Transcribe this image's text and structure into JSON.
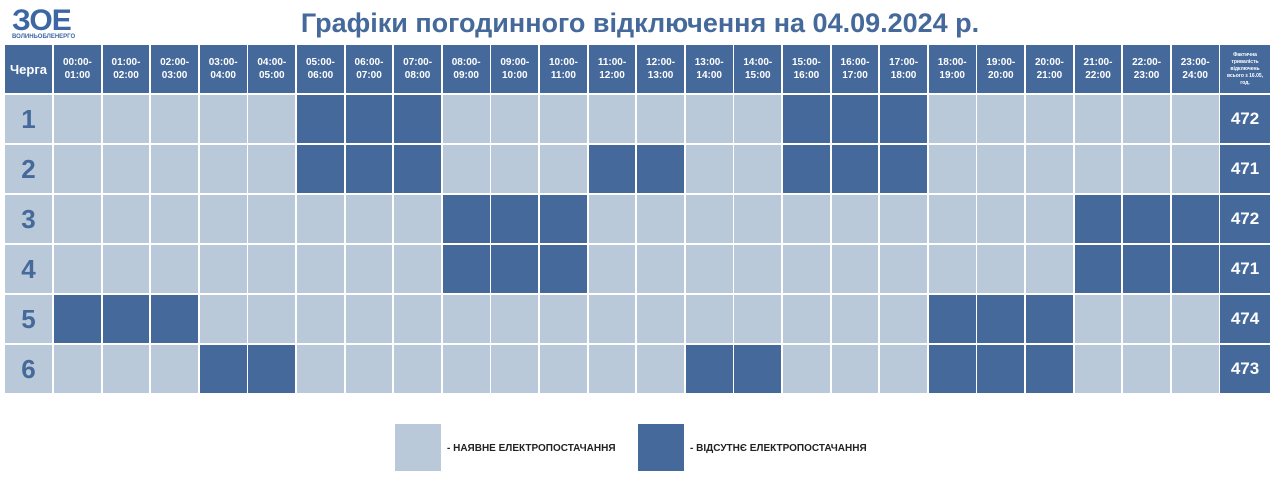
{
  "logo": {
    "text": "ЗОЕ",
    "subtitle": "ВОЛИНЬОБЛЕНЕРГО"
  },
  "header": {
    "title": "Графіки погодинного відключення на 04.09.2024 р."
  },
  "table": {
    "queue_header": "Черга",
    "hours": [
      [
        "00:00-",
        "01:00"
      ],
      [
        "01:00-",
        "02:00"
      ],
      [
        "02:00-",
        "03:00"
      ],
      [
        "03:00-",
        "04:00"
      ],
      [
        "04:00-",
        "05:00"
      ],
      [
        "05:00-",
        "06:00"
      ],
      [
        "06:00-",
        "07:00"
      ],
      [
        "07:00-",
        "08:00"
      ],
      [
        "08:00-",
        "09:00"
      ],
      [
        "09:00-",
        "10:00"
      ],
      [
        "10:00-",
        "11:00"
      ],
      [
        "11:00-",
        "12:00"
      ],
      [
        "12:00-",
        "13:00"
      ],
      [
        "13:00-",
        "14:00"
      ],
      [
        "14:00-",
        "15:00"
      ],
      [
        "15:00-",
        "16:00"
      ],
      [
        "16:00-",
        "17:00"
      ],
      [
        "17:00-",
        "18:00"
      ],
      [
        "18:00-",
        "19:00"
      ],
      [
        "19:00-",
        "20:00"
      ],
      [
        "20:00-",
        "21:00"
      ],
      [
        "21:00-",
        "22:00"
      ],
      [
        "22:00-",
        "23:00"
      ],
      [
        "23:00-",
        "24:00"
      ]
    ],
    "total_header": [
      "Фактична",
      "тривалість",
      "відключень",
      "всього з 16.05,",
      "год."
    ],
    "rows": [
      {
        "queue": "1",
        "total": "472",
        "outage": [
          false,
          false,
          false,
          false,
          false,
          true,
          true,
          true,
          false,
          false,
          false,
          false,
          false,
          false,
          false,
          true,
          true,
          true,
          false,
          false,
          false,
          false,
          false,
          false
        ]
      },
      {
        "queue": "2",
        "total": "471",
        "outage": [
          false,
          false,
          false,
          false,
          false,
          true,
          true,
          true,
          false,
          false,
          false,
          true,
          true,
          false,
          false,
          true,
          true,
          true,
          false,
          false,
          false,
          false,
          false,
          false
        ]
      },
      {
        "queue": "3",
        "total": "472",
        "outage": [
          false,
          false,
          false,
          false,
          false,
          false,
          false,
          false,
          true,
          true,
          true,
          false,
          false,
          false,
          false,
          false,
          false,
          false,
          false,
          false,
          false,
          true,
          true,
          true
        ]
      },
      {
        "queue": "4",
        "total": "471",
        "outage": [
          false,
          false,
          false,
          false,
          false,
          false,
          false,
          false,
          true,
          true,
          true,
          false,
          false,
          false,
          false,
          false,
          false,
          false,
          false,
          false,
          false,
          true,
          true,
          true
        ]
      },
      {
        "queue": "5",
        "total": "474",
        "outage": [
          true,
          true,
          true,
          false,
          false,
          false,
          false,
          false,
          false,
          false,
          false,
          false,
          false,
          false,
          false,
          false,
          false,
          false,
          true,
          true,
          true,
          false,
          false,
          false
        ]
      },
      {
        "queue": "6",
        "total": "473",
        "outage": [
          false,
          false,
          false,
          true,
          true,
          false,
          false,
          false,
          false,
          false,
          false,
          false,
          false,
          true,
          true,
          false,
          false,
          false,
          true,
          true,
          true,
          false,
          false,
          false
        ]
      }
    ]
  },
  "legend": {
    "on": "- НАЯВНЕ ЕЛЕКТРОПОСТАЧАННЯ",
    "off": "- ВІДСУТНЄ ЕЛЕКТРОПОСТАЧАННЯ"
  }
}
